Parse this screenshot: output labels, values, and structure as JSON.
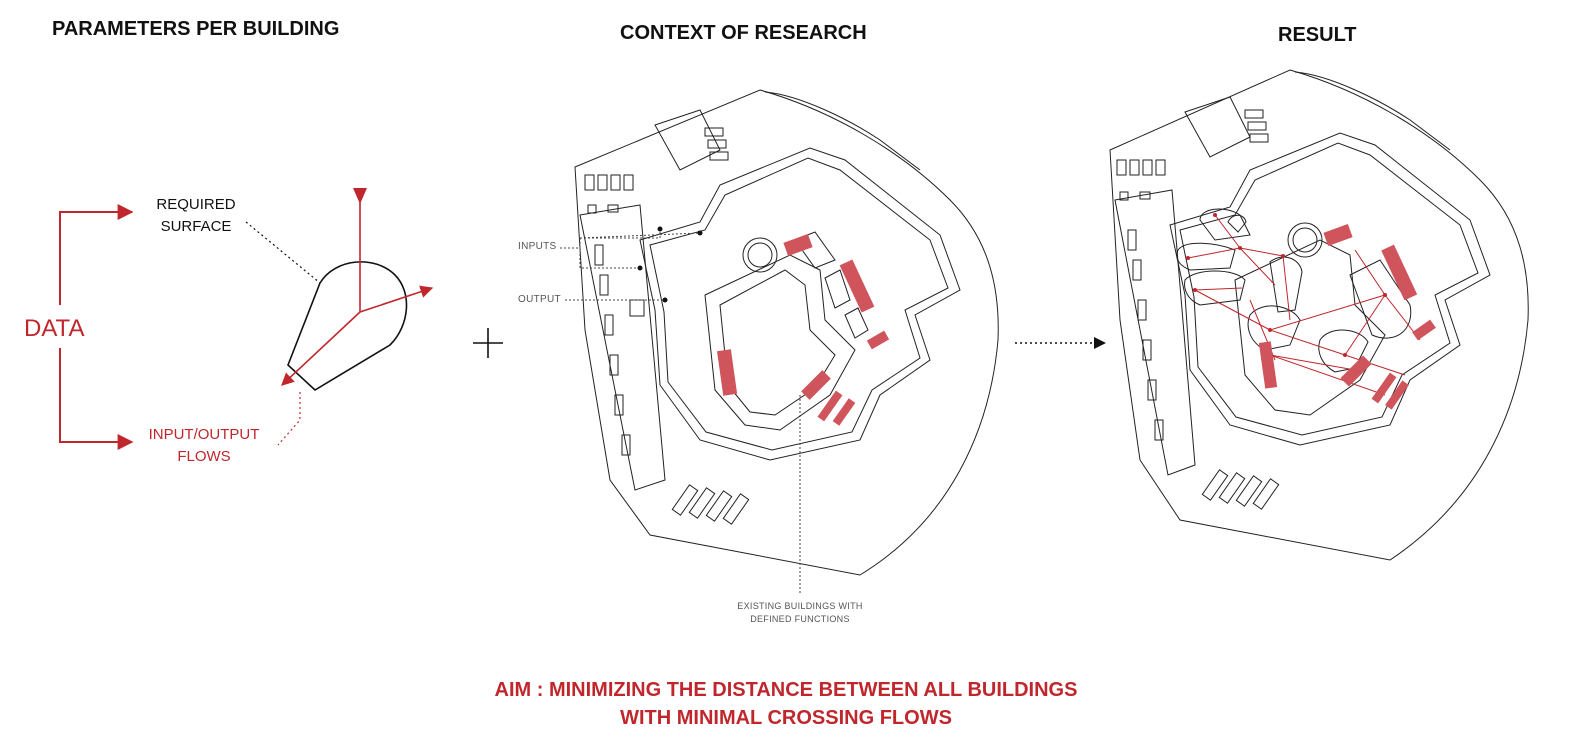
{
  "headings": {
    "parameters": "PARAMETERS PER BUILDING",
    "context": "CONTEXT OF RESEARCH",
    "result": "RESULT"
  },
  "left_panel": {
    "data_label": "DATA",
    "required_surface_line1": "REQUIRED",
    "required_surface_line2": "SURFACE",
    "flows_line1": "INPUT/OUTPUT",
    "flows_line2": "FLOWS"
  },
  "context_panel": {
    "inputs_label": "INPUTS",
    "output_label": "OUTPUT",
    "existing_line1": "EXISTING BUILDINGS WITH",
    "existing_line2": "DEFINED FUNCTIONS"
  },
  "aim": {
    "line1": "AIM : MINIMIZING THE DISTANCE BETWEEN ALL BUILDINGS",
    "line2": "WITH MINIMAL CROSSING FLOWS"
  },
  "colors": {
    "accent": "#c0272d",
    "building_fill": "#d0545c",
    "line": "#222222"
  },
  "icons": {
    "plus": "plus-icon",
    "arrow": "dotted-arrow-icon"
  }
}
